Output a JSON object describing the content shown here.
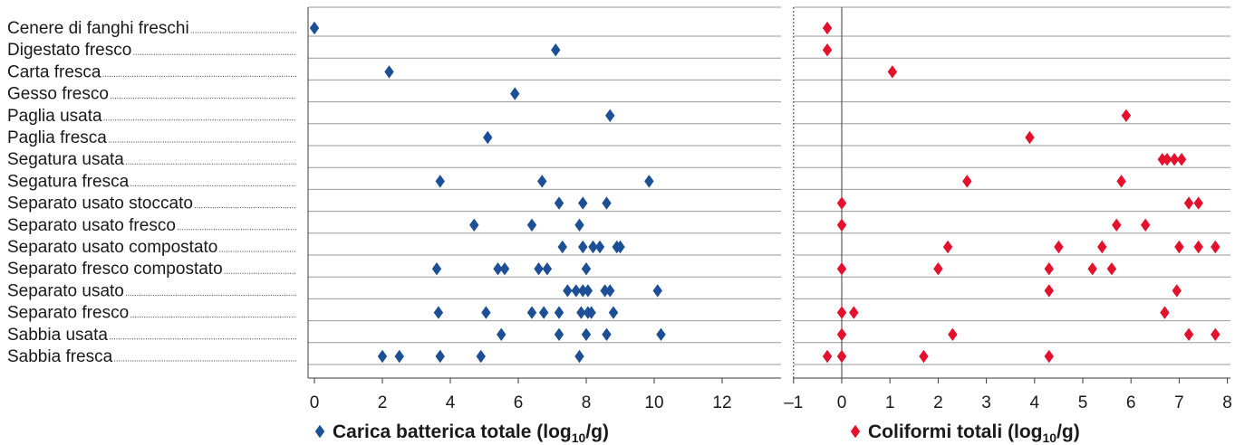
{
  "chart_data": {
    "type": "scatter",
    "categories": [
      "Cenere di fanghi freschi",
      "Digestato fresco",
      "Carta fresca",
      "Gesso fresco",
      "Paglia usata",
      "Paglia fresca",
      "Segatura usata",
      "Segatura fresca",
      "Separato usato stoccato",
      "Separato usato fresco",
      "Separato usato compostato",
      "Separato fresco compostato",
      "Separato usato",
      "Separato fresco",
      "Sabbia usata",
      "Sabbia fresca"
    ],
    "panels": [
      {
        "name": "Carica batterica totale (log10/g)",
        "title_main": "Carica batterica totale (log",
        "title_sub": "10",
        "title_end": "/g)",
        "color": "#1c4f96",
        "xlim": [
          0,
          13.5
        ],
        "xticks": [
          0,
          2,
          4,
          6,
          8,
          10,
          12
        ],
        "xtick_labels": [
          "0",
          "2",
          "4",
          "6",
          "8",
          "10",
          "12"
        ],
        "values": [
          [
            0
          ],
          [
            7.1
          ],
          [
            2.2
          ],
          [
            5.9
          ],
          [
            8.7
          ],
          [
            5.1
          ],
          [],
          [
            3.7,
            6.7,
            9.85
          ],
          [
            7.2,
            7.9,
            8.6
          ],
          [
            4.7,
            6.4,
            7.8
          ],
          [
            7.3,
            7.9,
            8.2,
            8.4,
            8.9,
            9.0
          ],
          [
            3.6,
            5.4,
            5.6,
            6.6,
            6.85,
            8.0
          ],
          [
            7.45,
            7.7,
            7.9,
            8.05,
            8.55,
            8.7,
            10.1
          ],
          [
            3.65,
            5.05,
            6.4,
            6.75,
            7.2,
            7.85,
            8.05,
            8.15,
            8.8
          ],
          [
            5.5,
            7.2,
            8.0,
            8.6,
            10.2
          ],
          [
            2.0,
            2.5,
            3.7,
            4.9,
            7.8
          ]
        ]
      },
      {
        "name": "Coliformi totali (log10/g)",
        "title_main": "Coliformi totali (log",
        "title_sub": "10",
        "title_end": "/g)",
        "color": "#e3112d",
        "xlim": [
          -1,
          8
        ],
        "xticks": [
          -1,
          0,
          1,
          2,
          3,
          4,
          5,
          6,
          7,
          8
        ],
        "xtick_labels": [
          "–1",
          "0",
          "1",
          "2",
          "3",
          "4",
          "5",
          "6",
          "7",
          "8"
        ],
        "values": [
          [
            -0.3
          ],
          [
            -0.3
          ],
          [
            1.05
          ],
          [],
          [
            5.9
          ],
          [
            3.9
          ],
          [
            6.65,
            6.75,
            6.9,
            7.05
          ],
          [
            2.6,
            5.8
          ],
          [
            0,
            7.2,
            7.4
          ],
          [
            0,
            5.7,
            6.3
          ],
          [
            2.2,
            4.5,
            5.4,
            7.0,
            7.4,
            7.75
          ],
          [
            0,
            2.0,
            4.3,
            5.2,
            5.6
          ],
          [
            4.3,
            6.95
          ],
          [
            0,
            0.25,
            6.7
          ],
          [
            0,
            2.3,
            7.2,
            7.75
          ],
          [
            -0.3,
            0,
            1.7,
            4.3
          ]
        ]
      }
    ],
    "grid": true,
    "legend": "bottom"
  }
}
